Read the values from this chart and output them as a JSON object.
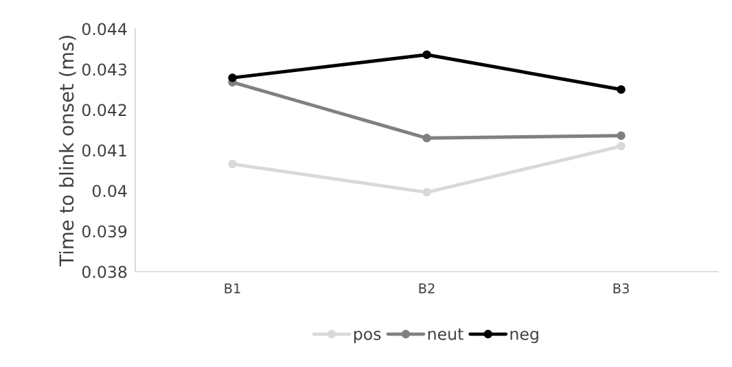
{
  "chart_data": {
    "type": "line",
    "ylabel": "Time to blink onset (ms)",
    "categories": [
      "B1",
      "B2",
      "B3"
    ],
    "series": [
      {
        "name": "pos",
        "color": "#d9d9d9",
        "values": [
          0.04066,
          0.03996,
          0.0411
        ]
      },
      {
        "name": "neut",
        "color": "#808080",
        "values": [
          0.04268,
          0.0413,
          0.04136
        ]
      },
      {
        "name": "neg",
        "color": "#000000",
        "values": [
          0.04279,
          0.04336,
          0.0425
        ]
      }
    ],
    "ylim": [
      0.038,
      0.044
    ],
    "yticks": [
      0.038,
      0.039,
      0.04,
      0.041,
      0.042,
      0.043,
      0.044
    ],
    "grid": false,
    "legend": "bottom",
    "marker": "circle",
    "line_style": "solid"
  }
}
